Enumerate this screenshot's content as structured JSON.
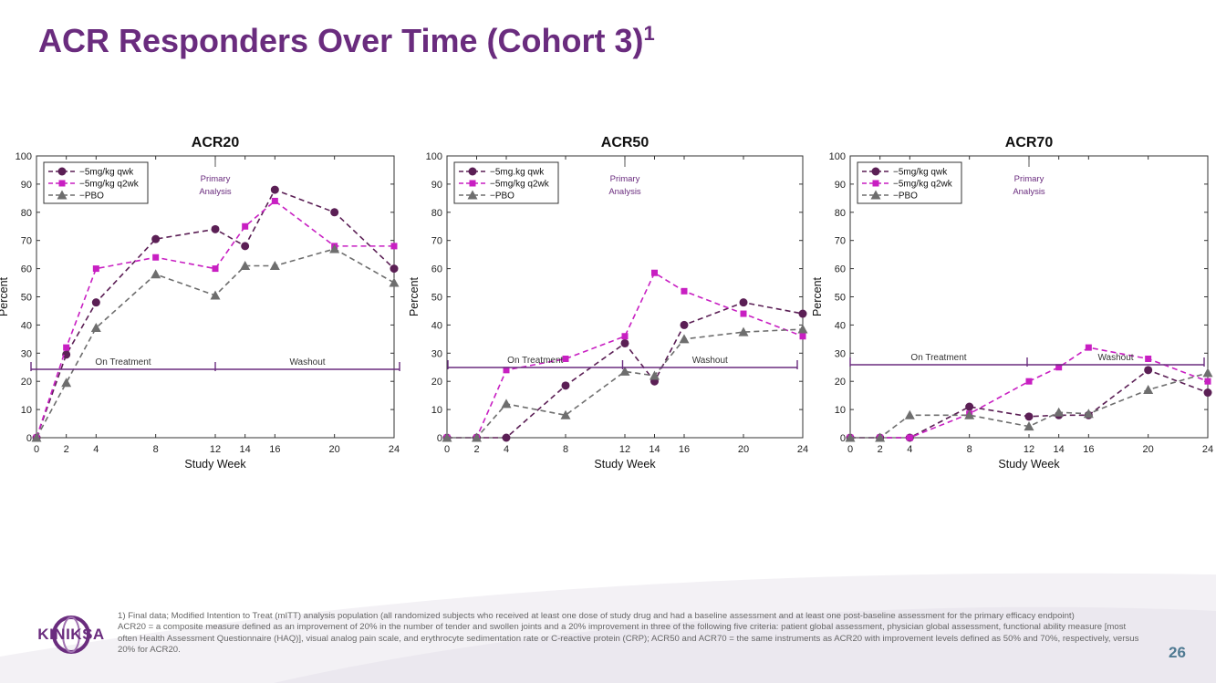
{
  "slide": {
    "title": "ACR Responders Over Time (Cohort 3)",
    "title_sup": "1",
    "page_number": "26",
    "logo_text": "KINIKSA",
    "footnotes": [
      "1) Final data; Modified Intention to Treat (mITT) analysis population (all randomized subjects who received at least one dose of study drug and had a baseline assessment and at least one post-baseline assessment for the primary efficacy endpoint)",
      "ACR20 = a composite measure defined as an improvement of 20% in the number of tender and swollen joints and a 20% improvement in three of the following five criteria: patient global assessment, physician global assessment, functional ability measure [most often Health Assessment Questionnaire (HAQ)], visual analog pain scale, and erythrocyte sedimentation rate or C-reactive protein (CRP); ACR50 and ACR70 = the same instruments as ACR20 with improvement levels defined as 50% and 70%, respectively, versus 20% for ACR20."
    ]
  },
  "colors": {
    "title": "#6a2c7e",
    "qwk": "#5b1f55",
    "q2wk": "#c81fc2",
    "pbo": "#6e6e6e",
    "phase": "#6a2c7e",
    "page_number": "#4f7a92"
  },
  "chart_data": [
    {
      "type": "line",
      "title": "ACR20",
      "xlabel": "Study Week",
      "ylabel": "Percent",
      "xlim": [
        0,
        24
      ],
      "ylim": [
        0,
        100
      ],
      "xticks": [
        0,
        2,
        4,
        8,
        12,
        14,
        16,
        20,
        24
      ],
      "yticks": [
        0,
        10,
        20,
        30,
        40,
        50,
        60,
        70,
        80,
        90,
        100
      ],
      "annotation": [
        "Primary",
        "Analysis"
      ],
      "annotation_x": 12,
      "phases": [
        {
          "label": "On Treatment",
          "from": 0,
          "to": 12
        },
        {
          "label": "Washout",
          "from": 12,
          "to": 24
        }
      ],
      "series": [
        {
          "name": "5mg/kg qwk",
          "marker": "circle",
          "x": [
            0,
            2,
            4,
            8,
            12,
            14,
            16,
            20,
            24
          ],
          "values": [
            0,
            29.5,
            48,
            70.5,
            74,
            68,
            88,
            80,
            60
          ]
        },
        {
          "name": "5mg/kg q2wk",
          "marker": "square",
          "x": [
            0,
            2,
            4,
            8,
            12,
            14,
            16,
            20,
            24
          ],
          "values": [
            0,
            32,
            60,
            64,
            60,
            75,
            84,
            68,
            68
          ]
        },
        {
          "name": "PBO",
          "marker": "triangle",
          "x": [
            0,
            2,
            4,
            8,
            12,
            14,
            16,
            20,
            24
          ],
          "values": [
            0,
            19.5,
            39,
            58,
            50.5,
            61,
            61,
            67,
            55
          ]
        }
      ]
    },
    {
      "type": "line",
      "title": "ACR50",
      "xlabel": "Study Week",
      "ylabel": "Percent",
      "xlim": [
        0,
        24
      ],
      "ylim": [
        0,
        100
      ],
      "xticks": [
        0,
        2,
        4,
        8,
        12,
        14,
        16,
        20,
        24
      ],
      "yticks": [
        0,
        10,
        20,
        30,
        40,
        50,
        60,
        70,
        80,
        90,
        100
      ],
      "annotation": [
        "Primary",
        "Analysis"
      ],
      "annotation_x": 12,
      "phases": [
        {
          "label": "On Treatment",
          "from": 0,
          "to": 12
        },
        {
          "label": "Washout",
          "from": 12,
          "to": 24
        }
      ],
      "series": [
        {
          "name": "5mg.kg qwk",
          "marker": "circle",
          "x": [
            0,
            2,
            4,
            8,
            12,
            14,
            16,
            20,
            24
          ],
          "values": [
            0,
            0,
            0,
            18.5,
            33.5,
            20,
            40,
            48,
            44
          ]
        },
        {
          "name": "5mg/kg q2wk",
          "marker": "square",
          "x": [
            0,
            2,
            4,
            8,
            12,
            14,
            16,
            20,
            24
          ],
          "values": [
            0,
            0,
            24,
            28,
            36,
            58.5,
            52,
            44,
            36
          ]
        },
        {
          "name": "PBO",
          "marker": "triangle",
          "x": [
            0,
            2,
            4,
            8,
            12,
            14,
            16,
            20,
            24
          ],
          "values": [
            0,
            0,
            12,
            8,
            23.5,
            22,
            35,
            37.5,
            38.5
          ]
        }
      ]
    },
    {
      "type": "line",
      "title": "ACR70",
      "xlabel": "Study Week",
      "ylabel": "Percent",
      "xlim": [
        0,
        24
      ],
      "ylim": [
        0,
        100
      ],
      "xticks": [
        0,
        2,
        4,
        8,
        12,
        14,
        16,
        20,
        24
      ],
      "yticks": [
        0,
        10,
        20,
        30,
        40,
        50,
        60,
        70,
        80,
        90,
        100
      ],
      "annotation": [
        "Primary",
        "Analysis"
      ],
      "annotation_x": 12,
      "phases": [
        {
          "label": "On Treatment",
          "from": 0,
          "to": 12
        },
        {
          "label": "Washout",
          "from": 12,
          "to": 24
        }
      ],
      "series": [
        {
          "name": "5mg/kg qwk",
          "marker": "circle",
          "x": [
            0,
            2,
            4,
            8,
            12,
            14,
            16,
            20,
            24
          ],
          "values": [
            0,
            0,
            0,
            11,
            7.5,
            8,
            8,
            24,
            16
          ]
        },
        {
          "name": "5mg/kg q2wk",
          "marker": "square",
          "x": [
            0,
            2,
            4,
            8,
            12,
            14,
            16,
            20,
            24
          ],
          "values": [
            0,
            0,
            0,
            8.5,
            20,
            25,
            32,
            28,
            20
          ]
        },
        {
          "name": "PBO",
          "marker": "triangle",
          "x": [
            0,
            2,
            4,
            8,
            12,
            14,
            16,
            20,
            24
          ],
          "values": [
            0,
            0,
            8,
            8,
            4,
            9,
            8.5,
            17,
            23
          ]
        }
      ]
    }
  ]
}
